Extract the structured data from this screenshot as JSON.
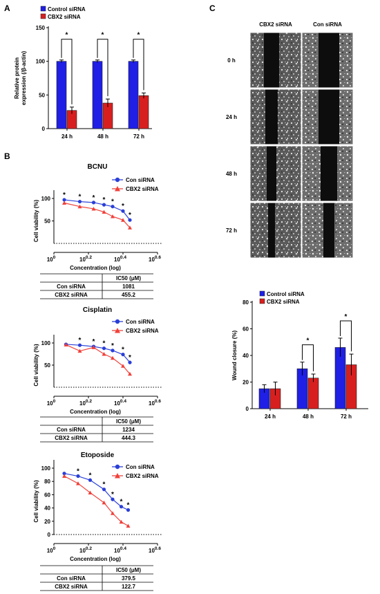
{
  "panels": {
    "a": "A",
    "b": "B",
    "c": "C"
  },
  "colors": {
    "control": "#1f1fe6",
    "treated": "#d81f1f",
    "con_curve": "#2a3fd8",
    "cbx2_curve": "#f0403a"
  },
  "chart_data": [
    {
      "id": "A",
      "type": "bar",
      "title": "",
      "ylabel": "Relative protein\nexpression (/β-actin)",
      "categories": [
        "24 h",
        "48 h",
        "72 h"
      ],
      "series": [
        {
          "name": "Control siRNA",
          "values": [
            100,
            100,
            100
          ],
          "errors": [
            2,
            2,
            2
          ]
        },
        {
          "name": "CBX2 siRNA",
          "values": [
            27,
            38,
            49
          ],
          "errors": [
            5,
            6,
            4
          ]
        }
      ],
      "ylim": [
        0,
        150
      ],
      "yticks": [
        0,
        50,
        100,
        150
      ],
      "significance": [
        "*",
        "*",
        "*"
      ],
      "legend": "top-left"
    },
    {
      "id": "B1",
      "type": "line",
      "title": "BCNU",
      "xlabel": "Concentration (log)",
      "ylabel": "Cell viability (%)",
      "xlim": [
        0,
        0.6
      ],
      "xticks": [
        0,
        0.2,
        0.4,
        0.6
      ],
      "xticklabels": [
        {
          "base": "10",
          "exp": "0"
        },
        {
          "base": "10",
          "exp": "0.2"
        },
        {
          "base": "10",
          "exp": "0.4"
        },
        {
          "base": "10",
          "exp": "0.6"
        }
      ],
      "ylim": [
        0,
        100
      ],
      "yticks": [
        50,
        100
      ],
      "series": [
        {
          "name": "Con siRNA",
          "marker": "circle",
          "x": [
            0.06,
            0.15,
            0.23,
            0.29,
            0.34,
            0.4,
            0.44
          ],
          "y": [
            97,
            93,
            91,
            86,
            82,
            72,
            52
          ]
        },
        {
          "name": "CBX2 siRNA",
          "marker": "triangle",
          "x": [
            0.06,
            0.15,
            0.23,
            0.29,
            0.34,
            0.4,
            0.44
          ],
          "y": [
            90,
            82,
            77,
            70,
            60,
            52,
            35
          ]
        }
      ],
      "significance_x": [
        0.06,
        0.15,
        0.23,
        0.29,
        0.34,
        0.4,
        0.44
      ],
      "significance": "*",
      "table": {
        "header": "IC50 (μM)",
        "rows": [
          [
            "Con siRNA",
            "1081"
          ],
          [
            "CBX2 siRNA",
            "455.2"
          ]
        ]
      }
    },
    {
      "id": "B2",
      "type": "line",
      "title": "Cisplatin",
      "xlabel": "Concentration (log)",
      "ylabel": "Cell viability (%)",
      "xlim": [
        0,
        0.6
      ],
      "xticks": [
        0,
        0.2,
        0.4,
        0.6
      ],
      "xticklabels": [
        {
          "base": "10",
          "exp": "0"
        },
        {
          "base": "10",
          "exp": "0.2"
        },
        {
          "base": "10",
          "exp": "0.4"
        },
        {
          "base": "10",
          "exp": "0.6"
        }
      ],
      "ylim": [
        0,
        100
      ],
      "yticks": [
        50,
        100
      ],
      "series": [
        {
          "name": "Con siRNA",
          "marker": "circle",
          "x": [
            0.07,
            0.15,
            0.23,
            0.29,
            0.34,
            0.4,
            0.44
          ],
          "y": [
            97,
            95,
            92,
            88,
            83,
            74,
            56
          ]
        },
        {
          "name": "CBX2 siRNA",
          "marker": "triangle",
          "x": [
            0.07,
            0.15,
            0.23,
            0.29,
            0.34,
            0.4,
            0.44
          ],
          "y": [
            96,
            82,
            90,
            75,
            66,
            48,
            30
          ]
        }
      ],
      "significance_x": [
        0.15,
        0.23,
        0.29,
        0.34,
        0.4,
        0.44
      ],
      "significance": "*",
      "table": {
        "header": "IC50 (μM)",
        "rows": [
          [
            "Con siRNA",
            "1234"
          ],
          [
            "CBX2 siRNA",
            "444.3"
          ]
        ]
      }
    },
    {
      "id": "B3",
      "type": "line",
      "title": "Etoposide",
      "xlabel": "Concentration (log)",
      "ylabel": "Cell viability (%)",
      "xlim": [
        0,
        0.6
      ],
      "xticks": [
        0,
        0.2,
        0.4,
        0.6
      ],
      "xticklabels": [
        {
          "base": "10",
          "exp": "0"
        },
        {
          "base": "10",
          "exp": "0.2"
        },
        {
          "base": "10",
          "exp": "0.4"
        },
        {
          "base": "10",
          "exp": "0.6"
        }
      ],
      "ylim": [
        0,
        100
      ],
      "yticks": [
        0,
        20,
        40,
        60,
        80,
        100
      ],
      "series": [
        {
          "name": "Con siRNA",
          "marker": "circle",
          "x": [
            0.06,
            0.14,
            0.21,
            0.29,
            0.34,
            0.39,
            0.43
          ],
          "y": [
            92,
            88,
            82,
            68,
            53,
            42,
            37
          ]
        },
        {
          "name": "CBX2 siRNA",
          "marker": "triangle",
          "x": [
            0.06,
            0.14,
            0.21,
            0.29,
            0.34,
            0.39,
            0.43
          ],
          "y": [
            88,
            77,
            63,
            48,
            32,
            19,
            13
          ]
        }
      ],
      "significance_x": [
        0.14,
        0.21,
        0.29,
        0.34,
        0.39,
        0.43
      ],
      "significance": "*",
      "table": {
        "header": "IC50 (μM)",
        "rows": [
          [
            "Con siRNA",
            "379.5"
          ],
          [
            "CBX2 siRNA",
            "122.7"
          ]
        ]
      }
    },
    {
      "id": "C-bar",
      "type": "bar",
      "title": "",
      "ylabel": "Wound closure (%)",
      "categories": [
        "24 h",
        "48 h",
        "72 h"
      ],
      "series": [
        {
          "name": "Control siRNA",
          "values": [
            15,
            30,
            46
          ],
          "errors": [
            3,
            5,
            7
          ]
        },
        {
          "name": "CBX2 siRNA",
          "values": [
            15,
            23,
            33
          ],
          "errors": [
            5,
            3,
            8
          ]
        }
      ],
      "ylim": [
        0,
        80
      ],
      "yticks": [
        0,
        20,
        40,
        60,
        80
      ],
      "significance": [
        "",
        "*",
        "*"
      ],
      "legend": "top-left"
    }
  ],
  "micrographs": {
    "columns": [
      "CBX2 siRNA",
      "Con siRNA"
    ],
    "rows": [
      "0 h",
      "24 h",
      "48 h",
      "72 h"
    ]
  }
}
